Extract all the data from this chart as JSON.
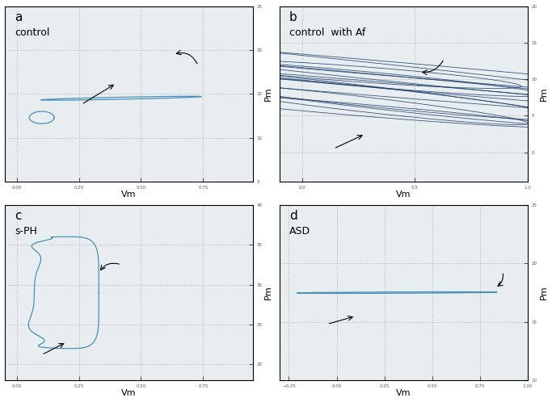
{
  "bg_color": "#ffffff",
  "plot_bg": "#e8eef0",
  "line_color_a": "#4a90b8",
  "line_color_b": "#1a3a6a",
  "line_color_c": "#4a90b8",
  "line_color_d": "#4a90b8",
  "ylabel": "Pm",
  "xlabel": "Vm",
  "panel_labels": [
    "a",
    "b",
    "c",
    "d"
  ],
  "panel_titles": [
    "control",
    "control  with Af",
    "s-PH",
    "ASD"
  ]
}
